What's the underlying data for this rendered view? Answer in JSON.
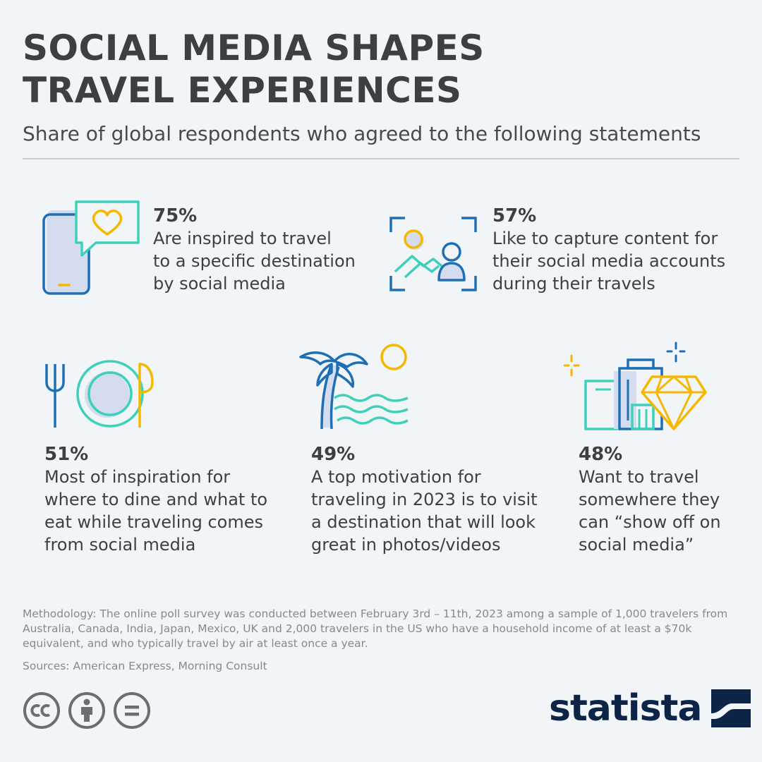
{
  "header": {
    "title_line1": "SOCIAL MEDIA SHAPES",
    "title_line2": "TRAVEL EXPERIENCES",
    "subtitle": "Share of global respondents who agreed to the following statements"
  },
  "chart_data": {
    "type": "table",
    "unit": "%",
    "items": [
      {
        "value": 75,
        "label_text": "75%",
        "lines": [
          "Are inspired to travel",
          "to a specific destination",
          "by social media"
        ],
        "icon": "phone-heart-icon"
      },
      {
        "value": 57,
        "label_text": "57%",
        "lines": [
          "Like to capture content for",
          "their social media accounts",
          "during their travels"
        ],
        "icon": "camera-frame-person-icon"
      },
      {
        "value": 51,
        "label_text": "51%",
        "lines": [
          "Most of inspiration for",
          "where to dine and what to",
          "eat while traveling comes",
          "from social media"
        ],
        "icon": "plate-cutlery-icon"
      },
      {
        "value": 49,
        "label_text": "49%",
        "lines": [
          "A top motivation for",
          "traveling in 2023 is to visit",
          "a destination that will look",
          "great in photos/videos"
        ],
        "icon": "palm-beach-icon"
      },
      {
        "value": 48,
        "label_text": "48%",
        "lines": [
          "Want to travel",
          "somewhere they",
          "can “show off on",
          "social media”"
        ],
        "icon": "buildings-diamond-icon"
      }
    ]
  },
  "footer": {
    "methodology": "Methodology: The online poll survey was conducted between February 3rd – 11th, 2023 among a sample of 1,000 travelers from Australia, Canada, India, Japan, Mexico, UK and 2,000 travelers in the US who have a household income of at least a $70k equivalent, and who typically travel by air at least once a year.",
    "sources": "Sources: American Express, Morning Consult",
    "license_icons": [
      "cc-icon",
      "attribution-icon",
      "no-derivatives-icon"
    ],
    "logo_text": "statista"
  },
  "colors": {
    "background": "#f1f5f8",
    "title": "#3c4043",
    "blue": "#1f6fb5",
    "teal": "#3ed0bb",
    "yellow": "#f5b800",
    "lavender": "#d6dcef",
    "logo_navy": "#0c2446"
  }
}
